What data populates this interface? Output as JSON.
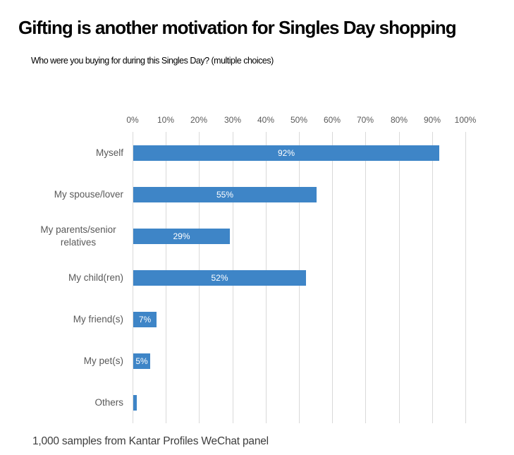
{
  "page": {
    "title": "Gifting is another motivation for Singles Day shopping",
    "subtitle": "Who were you buying for during this Singles Day? (multiple choices)",
    "footer": "1,000 samples from Kantar Profiles WeChat panel"
  },
  "colors": {
    "background": "#FFFFFF",
    "bar": "#3E85C7",
    "gridline": "#D9D9D9",
    "axis_text": "#595959",
    "category_text": "#595959",
    "value_text": "#FFFFFF",
    "title_text": "#000000",
    "subtitle_text": "#000000",
    "footer_text": "#3D3D3D"
  },
  "chart_data": {
    "type": "bar",
    "orientation": "horizontal",
    "title": "Gifting is another motivation for Singles Day shopping",
    "subtitle": "Who were you buying for during this Singles Day? (multiple choices)",
    "source_note": "1,000 samples from Kantar Profiles WeChat panel",
    "categories": [
      "Myself",
      "My spouse/lover",
      "My parents/senior relatives",
      "My child(ren)",
      "My friend(s)",
      "My pet(s)",
      "Others"
    ],
    "values": [
      92,
      55,
      29,
      52,
      7,
      5,
      1
    ],
    "value_labels": [
      "92%",
      "55%",
      "29%",
      "52%",
      "7%",
      "5%",
      ""
    ],
    "x_tick_labels": [
      "0%",
      "10%",
      "20%",
      "30%",
      "40%",
      "50%",
      "60%",
      "70%",
      "80%",
      "90%",
      "100%"
    ],
    "xlim": [
      0,
      100
    ],
    "grid": "vertical",
    "legend": "none"
  }
}
